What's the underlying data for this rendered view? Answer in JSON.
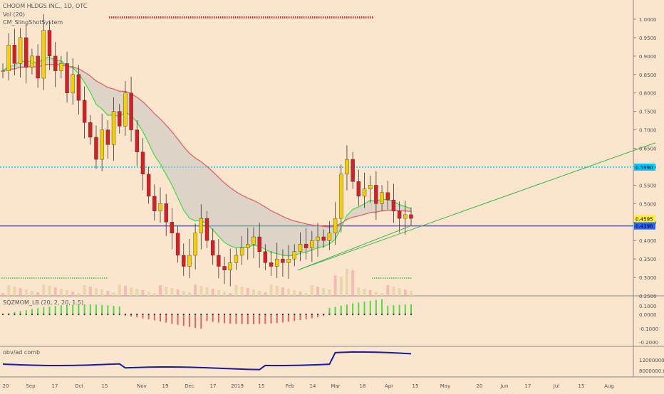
{
  "title": "CHOOM HLDGS INC., 1D, OTC",
  "indicators": [
    "Vol (20)",
    "CM_SlingShotSystem"
  ],
  "sqz_label": "SQZMOM_LB (20, 2, 20, 1.5)",
  "obv_label": "obv/ad comb",
  "colors": {
    "bg": "#fbe6cd",
    "up": "#f5d000",
    "down": "#d81f26",
    "cyanLine": "#00c8ff",
    "blueLine": "#2962ff",
    "ema_fast": "#4cd94c",
    "ema_slow": "#e06464",
    "trend": "#39b54a",
    "obv": "#1a1aa0"
  },
  "chart_data": {
    "type": "candlestick",
    "price_axis": {
      "ticks": [
        "1.0000",
        "0.9500",
        "0.9000",
        "0.8500",
        "0.8000",
        "0.7500",
        "0.7000",
        "0.6500",
        "0.6000",
        "0.5500",
        "0.5000",
        "0.4500",
        "0.4000",
        "0.3500",
        "0.3000",
        "0.2500"
      ],
      "min": 0.25,
      "max": 1.0
    },
    "sqz_axis": {
      "ticks": [
        "0.1000",
        "0.0000",
        "-0.1000",
        "-0.2000"
      ]
    },
    "obv_axis": {
      "ticks": [
        "12000000.0000",
        "8000000.0000"
      ]
    },
    "time_labels": [
      "20",
      "Sep",
      "17",
      "Oct",
      "15",
      "Nov",
      "19",
      "Dec",
      "17",
      "2019",
      "15",
      "Feb",
      "14",
      "Mar",
      "18",
      "Apr",
      "15",
      "May",
      "20",
      "Jun",
      "17",
      "Jul",
      "15",
      "Aug"
    ],
    "price_labels": [
      {
        "value": 0.599,
        "text": "0.5990",
        "color": "#00c8ff"
      },
      {
        "value": 0.4595,
        "text": "0.4595",
        "color": "#ffee33"
      },
      {
        "value": 0.4396,
        "text": "0.4396",
        "color": "#2962ff"
      }
    ],
    "horizontal_lines": [
      {
        "value": 0.599,
        "style": "dotted"
      },
      {
        "value": 0.4396,
        "style": "solid"
      }
    ],
    "trendline": {
      "from": {
        "date": "2019-02-01",
        "value": 0.32
      },
      "to": {
        "date": "2019-08-20",
        "value": 0.665
      }
    },
    "candle_close_path": [
      0.86,
      0.93,
      0.88,
      0.95,
      0.87,
      0.9,
      0.84,
      0.97,
      0.9,
      0.86,
      0.88,
      0.8,
      0.85,
      0.78,
      0.72,
      0.68,
      0.62,
      0.7,
      0.66,
      0.75,
      0.71,
      0.8,
      0.7,
      0.64,
      0.58,
      0.52,
      0.48,
      0.5,
      0.45,
      0.42,
      0.36,
      0.33,
      0.36,
      0.42,
      0.46,
      0.4,
      0.36,
      0.33,
      0.32,
      0.34,
      0.36,
      0.38,
      0.39,
      0.41,
      0.37,
      0.34,
      0.33,
      0.35,
      0.34,
      0.35,
      0.37,
      0.39,
      0.38,
      0.4,
      0.41,
      0.4,
      0.42,
      0.46,
      0.58,
      0.62,
      0.56,
      0.52,
      0.54,
      0.55,
      0.5,
      0.53,
      0.51,
      0.48,
      0.46,
      0.47,
      0.46
    ],
    "series": [
      {
        "name": "SQZMOM"
      },
      {
        "name": "obv/ad comb"
      }
    ]
  }
}
